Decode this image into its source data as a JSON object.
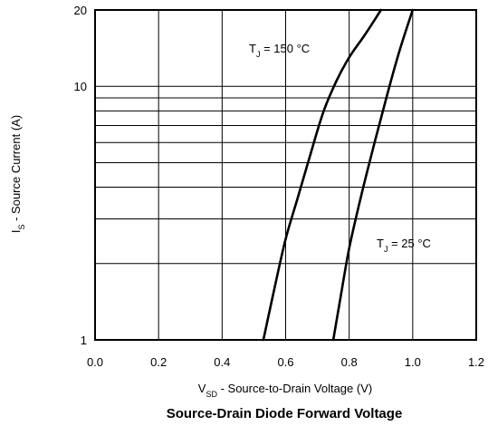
{
  "chart_data": {
    "type": "line",
    "title": "Source-Drain Diode Forward Voltage",
    "xlabel": {
      "main": "V",
      "sub": "SD",
      "rest": " - Source-to-Drain Voltage (V)"
    },
    "ylabel": {
      "main": "I",
      "sub": "S",
      "rest": " - Source Current (A)"
    },
    "xlim": [
      0.0,
      1.2
    ],
    "ylim": [
      1,
      20
    ],
    "yscale": "log",
    "grid": true,
    "x_ticks": [
      "0.0",
      "0.2",
      "0.4",
      "0.6",
      "0.8",
      "1.0",
      "1.2"
    ],
    "y_ticks": [
      {
        "value": 1,
        "label": "1"
      },
      {
        "value": 10,
        "label": "10"
      },
      {
        "value": 20,
        "label": "20"
      }
    ],
    "series": [
      {
        "annotation": {
          "main": "T",
          "sub": "J",
          "rest": " = 150 °C"
        },
        "x": [
          0.53,
          0.56,
          0.6,
          0.64,
          0.68,
          0.72,
          0.76,
          0.8,
          0.85,
          0.9
        ],
        "y": [
          1.0,
          1.5,
          2.5,
          3.7,
          5.5,
          8.0,
          10.5,
          13.0,
          16.0,
          20.0
        ]
      },
      {
        "annotation": {
          "main": "T",
          "sub": "J",
          "rest": " = 25 °C"
        },
        "x": [
          0.75,
          0.77,
          0.8,
          0.84,
          0.88,
          0.92,
          0.96,
          1.0
        ],
        "y": [
          1.0,
          1.4,
          2.3,
          3.8,
          6.0,
          9.3,
          14.0,
          20.0
        ]
      }
    ]
  }
}
